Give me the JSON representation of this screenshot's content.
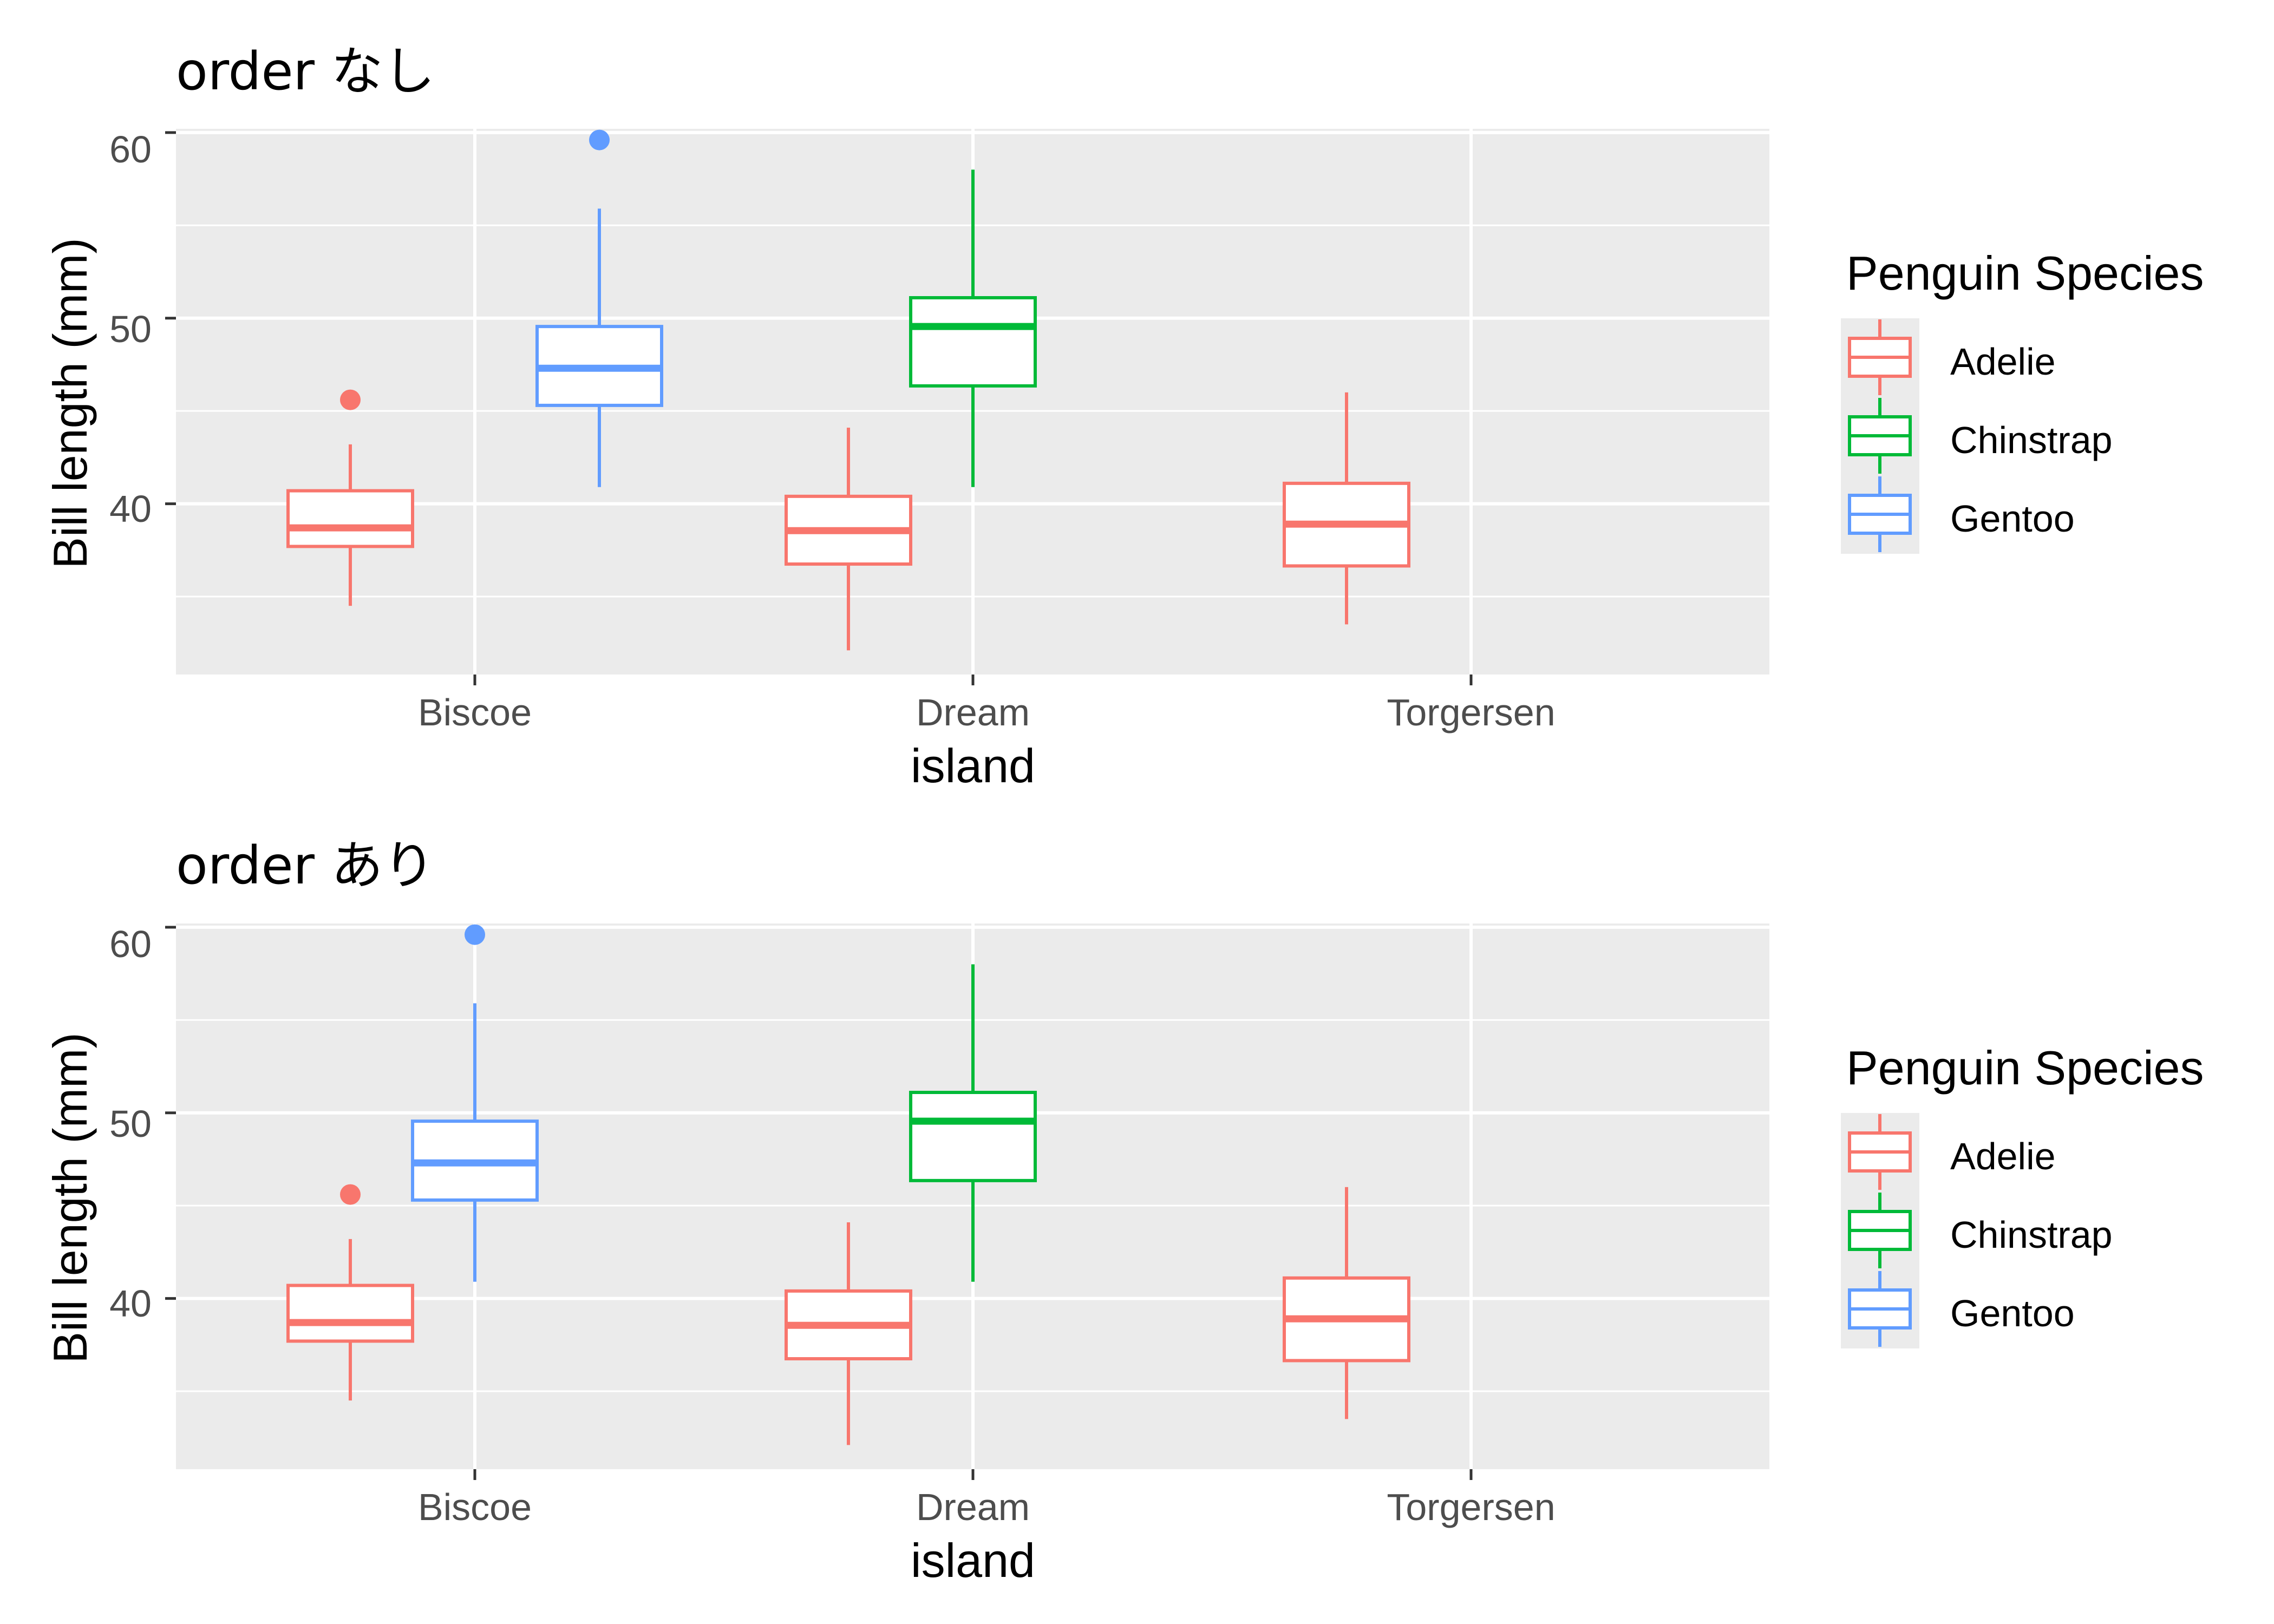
{
  "colors": {
    "Adelie": "#F8766D",
    "Chinstrap": "#00BA38",
    "Gentoo": "#619CFF",
    "panel_bg": "#EBEBEB",
    "grid": "#FFFFFF",
    "tick_text": "#4D4D4D"
  },
  "chart_data": [
    {
      "type": "box",
      "title": "order なし",
      "xlabel": "island",
      "ylabel": "Bill length (mm)",
      "categories": [
        "Biscoe",
        "Dream",
        "Torgersen"
      ],
      "yticks": [
        40,
        50,
        60
      ],
      "ylim": [
        30.8,
        60.2
      ],
      "grid": true,
      "dodge_slots": 3,
      "legend": {
        "title": "Penguin Species",
        "position": "right",
        "entries": [
          "Adelie",
          "Chinstrap",
          "Gentoo"
        ]
      },
      "boxes": [
        {
          "category": "Biscoe",
          "species": "Adelie",
          "slot": 0,
          "min": 34.5,
          "q1": 37.7,
          "median": 38.7,
          "q3": 40.7,
          "max": 43.2,
          "outliers": [
            45.6
          ]
        },
        {
          "category": "Biscoe",
          "species": "Gentoo",
          "slot": 2,
          "min": 40.9,
          "q1": 45.3,
          "median": 47.3,
          "q3": 49.55,
          "max": 55.9,
          "outliers": [
            59.6
          ]
        },
        {
          "category": "Dream",
          "species": "Adelie",
          "slot": 0,
          "min": 32.1,
          "q1": 36.75,
          "median": 38.55,
          "q3": 40.4,
          "max": 44.1,
          "outliers": []
        },
        {
          "category": "Dream",
          "species": "Chinstrap",
          "slot": 1,
          "min": 40.9,
          "q1": 46.35,
          "median": 49.55,
          "q3": 51.1,
          "max": 58.0,
          "outliers": []
        },
        {
          "category": "Torgersen",
          "species": "Adelie",
          "slot": 0,
          "min": 33.5,
          "q1": 36.65,
          "median": 38.9,
          "q3": 41.1,
          "max": 46.0,
          "outliers": []
        }
      ]
    },
    {
      "type": "box",
      "title": "order あり",
      "xlabel": "island",
      "ylabel": "Bill length (mm)",
      "categories": [
        "Biscoe",
        "Dream",
        "Torgersen"
      ],
      "yticks": [
        40,
        50,
        60
      ],
      "ylim": [
        30.8,
        60.2
      ],
      "grid": true,
      "dodge_slots": 3,
      "legend": {
        "title": "Penguin Species",
        "position": "right",
        "entries": [
          "Adelie",
          "Chinstrap",
          "Gentoo"
        ]
      },
      "boxes": [
        {
          "category": "Biscoe",
          "species": "Adelie",
          "slot": 0,
          "min": 34.5,
          "q1": 37.7,
          "median": 38.7,
          "q3": 40.7,
          "max": 43.2,
          "outliers": [
            45.6
          ]
        },
        {
          "category": "Biscoe",
          "species": "Gentoo",
          "slot": 1,
          "min": 40.9,
          "q1": 45.3,
          "median": 47.3,
          "q3": 49.55,
          "max": 55.9,
          "outliers": [
            59.6
          ]
        },
        {
          "category": "Dream",
          "species": "Adelie",
          "slot": 0,
          "min": 32.1,
          "q1": 36.75,
          "median": 38.55,
          "q3": 40.4,
          "max": 44.1,
          "outliers": []
        },
        {
          "category": "Dream",
          "species": "Chinstrap",
          "slot": 1,
          "min": 40.9,
          "q1": 46.35,
          "median": 49.55,
          "q3": 51.1,
          "max": 58.0,
          "outliers": []
        },
        {
          "category": "Torgersen",
          "species": "Adelie",
          "slot": 0,
          "min": 33.5,
          "q1": 36.65,
          "median": 38.9,
          "q3": 41.1,
          "max": 46.0,
          "outliers": []
        }
      ]
    }
  ]
}
